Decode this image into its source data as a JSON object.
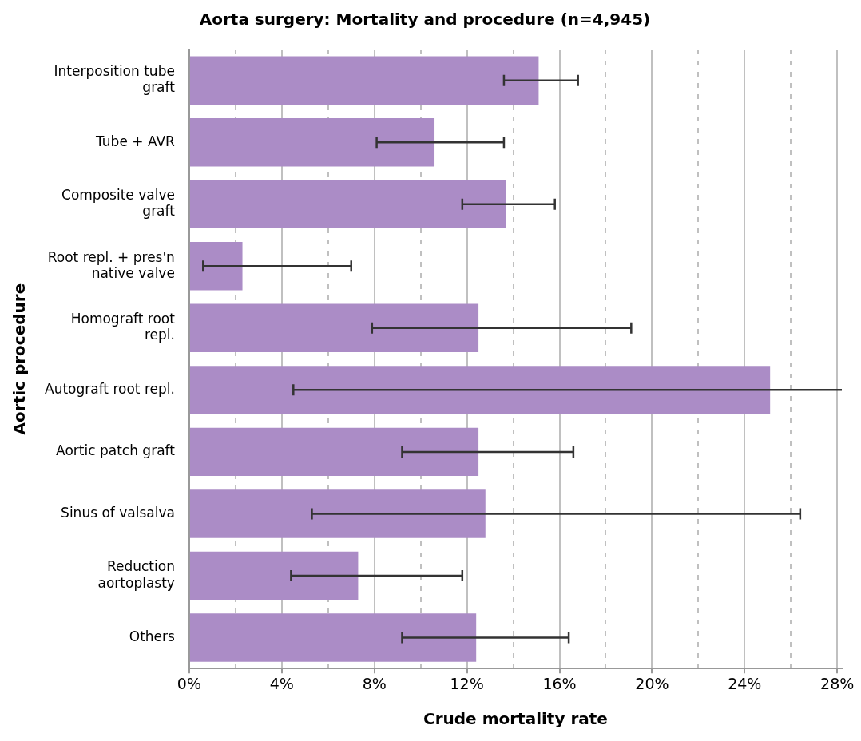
{
  "chart_data": {
    "type": "bar",
    "orientation": "horizontal",
    "title": "Aorta surgery: Mortality and procedure (n=4,945)",
    "xlabel": "Crude mortality rate",
    "ylabel": "Aortic procedure",
    "categories": [
      "Interposition tube graft",
      "Tube + AVR",
      "Composite valve graft",
      "Root repl. + pres'n native valve",
      "Homograft root repl.",
      "Autograft root repl.",
      "Aortic patch graft",
      "Sinus of valsalva",
      "Reduction aortoplasty",
      "Others"
    ],
    "values": [
      15.1,
      10.6,
      13.7,
      2.3,
      12.5,
      25.1,
      12.5,
      12.8,
      7.3,
      12.4
    ],
    "errors": [
      [
        13.6,
        16.8
      ],
      [
        8.1,
        13.6
      ],
      [
        11.8,
        15.8
      ],
      [
        0.6,
        7.0
      ],
      [
        7.9,
        19.1
      ],
      [
        4.5,
        28.2
      ],
      [
        9.2,
        16.6
      ],
      [
        5.3,
        26.4
      ],
      [
        4.4,
        11.8
      ],
      [
        9.2,
        16.4
      ]
    ],
    "color": "#ab8cc6",
    "xlim": [
      0,
      28.2
    ],
    "xticks": [
      {
        "value": 0,
        "label": "0%"
      },
      {
        "value": 2,
        "label": null
      },
      {
        "value": 4,
        "label": "4%"
      },
      {
        "value": 6,
        "label": null
      },
      {
        "value": 8,
        "label": "8%"
      },
      {
        "value": 10,
        "label": null
      },
      {
        "value": 12,
        "label": "12%"
      },
      {
        "value": 14,
        "label": null
      },
      {
        "value": 16,
        "label": "16%"
      },
      {
        "value": 18,
        "label": null
      },
      {
        "value": 20,
        "label": "20%"
      },
      {
        "value": 22,
        "label": null
      },
      {
        "value": 24,
        "label": "24%"
      },
      {
        "value": 26,
        "label": null
      },
      {
        "value": 28,
        "label": "28%"
      }
    ],
    "grid": "x"
  }
}
